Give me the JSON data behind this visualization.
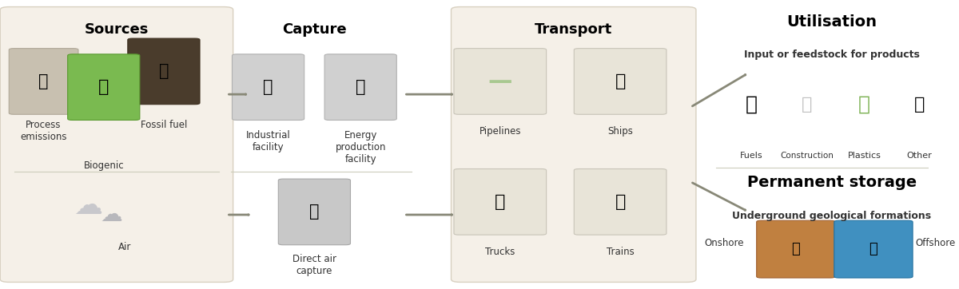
{
  "bg_color": "#ffffff",
  "sources_box_color": "#f5f0e8",
  "transport_box_color": "#f5f0e8",
  "box_border_color": "#d8d0c0",
  "title_fontsize": 13,
  "label_fontsize": 9,
  "subtitle_fontsize": 8,
  "arrow_color": "#888877",
  "divider_color": "#ccccbb",
  "sources_title": "Sources",
  "capture_title": "Capture",
  "transport_title": "Transport",
  "utilisation_title": "Utilisation",
  "utilisation_subtitle": "Input or feedstock for products",
  "storage_title": "Permanent storage",
  "storage_subtitle": "Underground geological formations",
  "sources_top_labels": [
    "Process\nemissions",
    "Fossil fuel",
    "Biogenic"
  ],
  "sources_bottom_labels": [
    "Air"
  ],
  "capture_top_labels": [
    "Industrial\nfacility",
    "Energy\nproduction\nfacility"
  ],
  "capture_bottom_labels": [
    "Direct air\ncapture"
  ],
  "transport_labels": [
    "Pipelines",
    "Ships",
    "Trucks",
    "Trains"
  ],
  "utilisation_labels": [
    "Fuels",
    "Construction",
    "Plastics",
    "Other"
  ],
  "storage_labels": [
    "Onshore",
    "Offshore"
  ]
}
